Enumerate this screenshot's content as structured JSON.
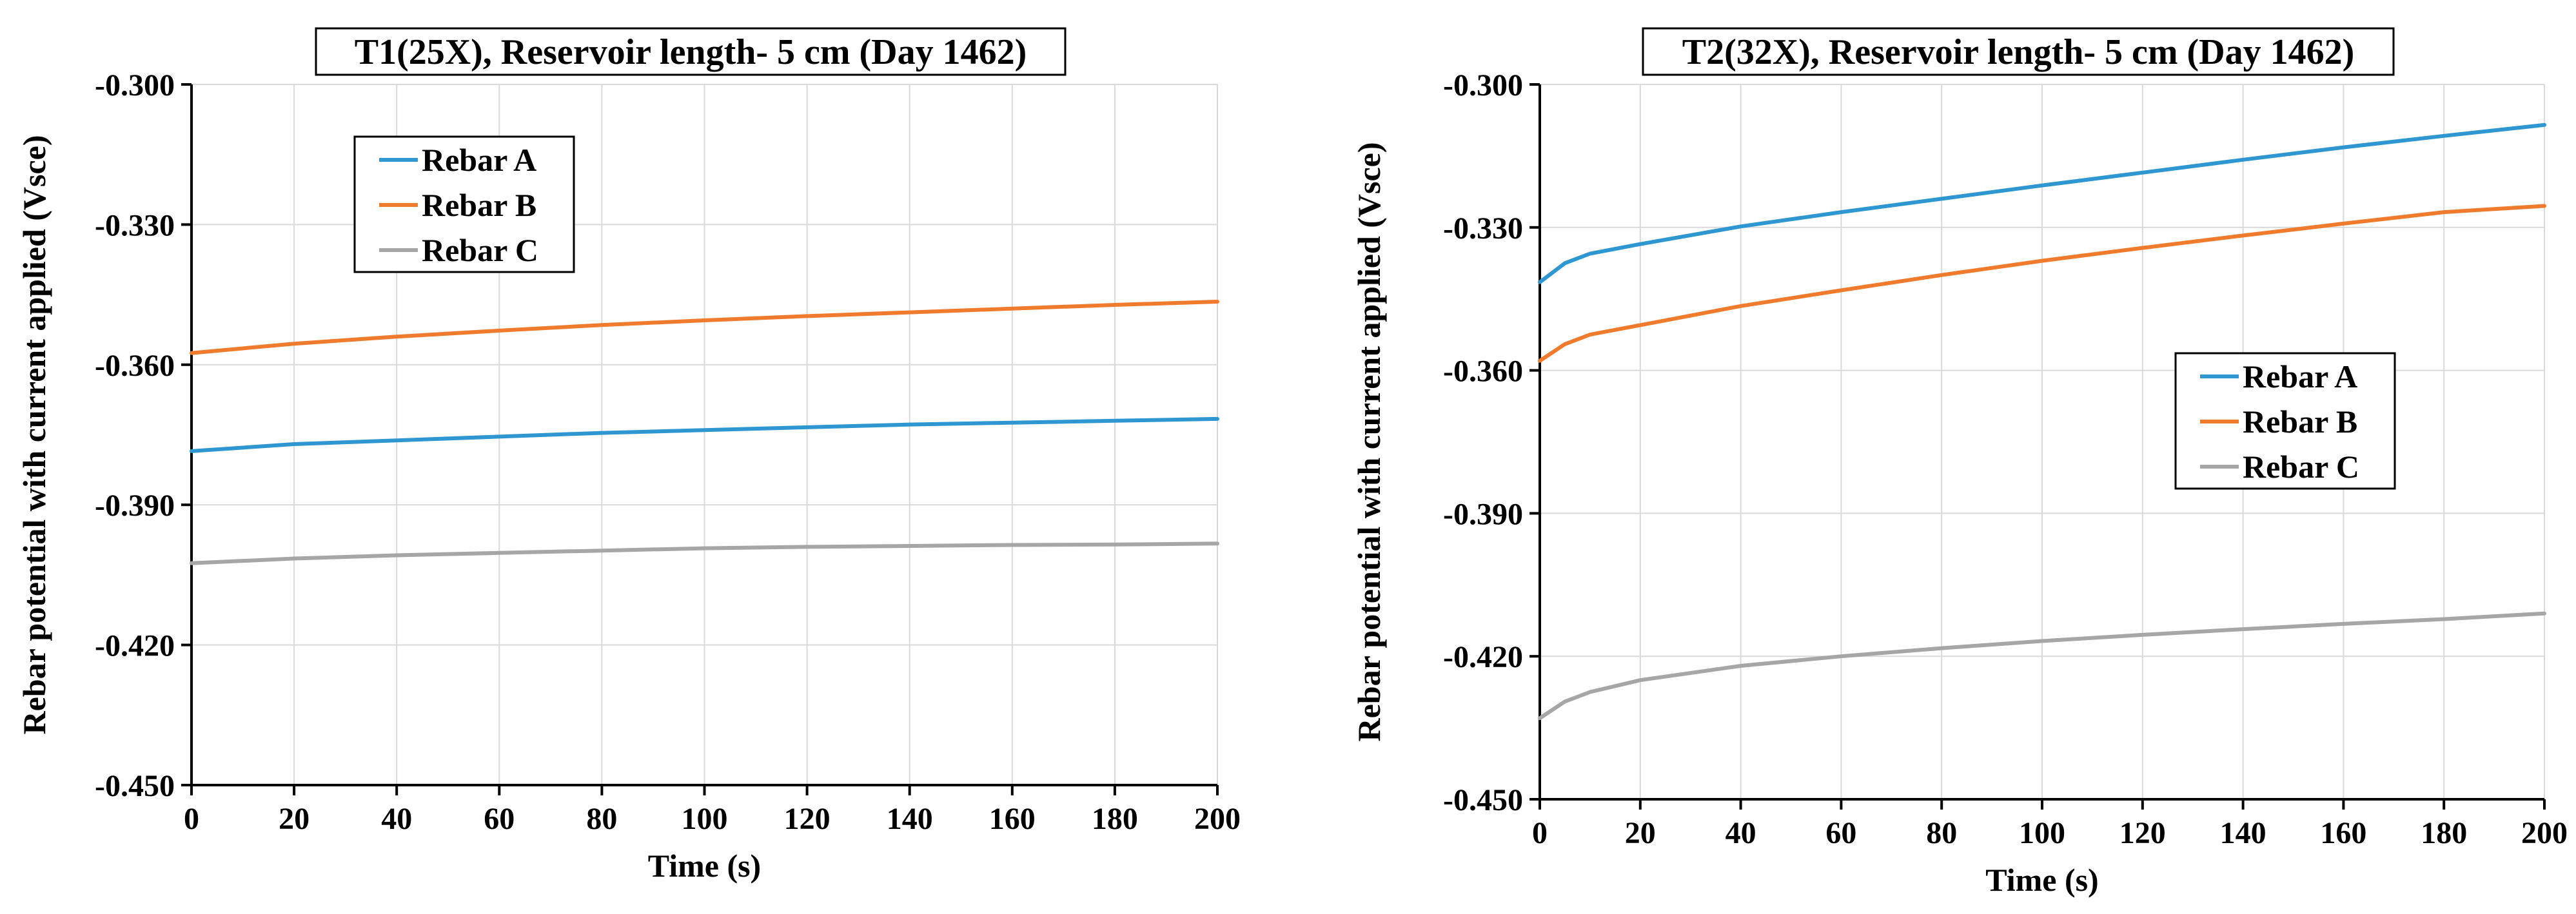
{
  "chart_data": [
    {
      "type": "line",
      "title": "T1(25X), Reservoir length- 5 cm (Day 1462)",
      "xlabel": "Time (s)",
      "ylabel": "Rebar potential with current applied (Vsce)",
      "xlim": [
        0,
        200
      ],
      "ylim": [
        -0.45,
        -0.3
      ],
      "xticks": [
        "0",
        "20",
        "40",
        "60",
        "80",
        "100",
        "120",
        "140",
        "160",
        "180",
        "200"
      ],
      "yticks": [
        "-0.300",
        "-0.330",
        "-0.360",
        "-0.390",
        "-0.420",
        "-0.450"
      ],
      "grid": true,
      "legend_position": "upper-left",
      "series": [
        {
          "name": "Rebar A",
          "color": "#2e97d1",
          "x": [
            0,
            20,
            40,
            60,
            80,
            100,
            120,
            140,
            160,
            180,
            200
          ],
          "y": [
            -0.3785,
            -0.377,
            -0.3762,
            -0.3754,
            -0.3746,
            -0.374,
            -0.3734,
            -0.3728,
            -0.3724,
            -0.372,
            -0.3716
          ]
        },
        {
          "name": "Rebar B",
          "color": "#f07b2d",
          "x": [
            0,
            20,
            40,
            60,
            80,
            100,
            120,
            140,
            160,
            180,
            200
          ],
          "y": [
            -0.3575,
            -0.3555,
            -0.354,
            -0.3527,
            -0.3515,
            -0.3505,
            -0.3496,
            -0.3488,
            -0.348,
            -0.3472,
            -0.3465
          ]
        },
        {
          "name": "Rebar C",
          "color": "#a6a6a6",
          "x": [
            0,
            20,
            40,
            60,
            80,
            100,
            120,
            140,
            160,
            180,
            200
          ],
          "y": [
            -0.4025,
            -0.4015,
            -0.4008,
            -0.4003,
            -0.3998,
            -0.3993,
            -0.399,
            -0.3988,
            -0.3986,
            -0.3985,
            -0.3983
          ]
        }
      ]
    },
    {
      "type": "line",
      "title": "T2(32X), Reservoir length- 5 cm (Day 1462)",
      "xlabel": "Time (s)",
      "ylabel": "Rebar potential with current applied (Vsce)",
      "xlim": [
        0,
        200
      ],
      "ylim": [
        -0.45,
        -0.3
      ],
      "xticks": [
        "0",
        "20",
        "40",
        "60",
        "80",
        "100",
        "120",
        "140",
        "160",
        "180",
        "200"
      ],
      "yticks": [
        "-0.300",
        "-0.330",
        "-0.360",
        "-0.390",
        "-0.420",
        "-0.450"
      ],
      "grid": true,
      "legend_position": "center-right",
      "series": [
        {
          "name": "Rebar A",
          "color": "#2e97d1",
          "x": [
            0,
            5,
            10,
            20,
            40,
            60,
            80,
            100,
            120,
            140,
            160,
            180,
            200
          ],
          "y": [
            -0.3415,
            -0.3375,
            -0.3355,
            -0.3335,
            -0.3298,
            -0.3268,
            -0.324,
            -0.3212,
            -0.3185,
            -0.3158,
            -0.3132,
            -0.3108,
            -0.3085
          ]
        },
        {
          "name": "Rebar B",
          "color": "#f07b2d",
          "x": [
            0,
            5,
            10,
            20,
            40,
            60,
            80,
            100,
            120,
            140,
            160,
            180,
            200
          ],
          "y": [
            -0.358,
            -0.3545,
            -0.3525,
            -0.3505,
            -0.3465,
            -0.3432,
            -0.34,
            -0.337,
            -0.3343,
            -0.3317,
            -0.3292,
            -0.3268,
            -0.3255
          ]
        },
        {
          "name": "Rebar C",
          "color": "#a6a6a6",
          "x": [
            0,
            5,
            10,
            20,
            40,
            60,
            80,
            100,
            120,
            140,
            160,
            180,
            200
          ],
          "y": [
            -0.433,
            -0.4295,
            -0.4275,
            -0.425,
            -0.422,
            -0.42,
            -0.4183,
            -0.4168,
            -0.4155,
            -0.4143,
            -0.4132,
            -0.4122,
            -0.411
          ]
        }
      ]
    }
  ]
}
